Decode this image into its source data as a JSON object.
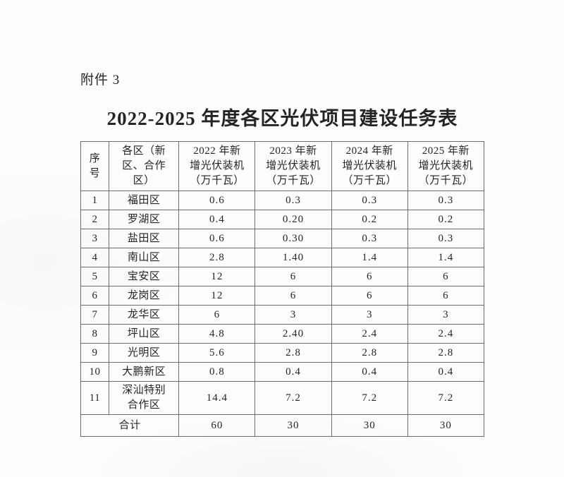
{
  "attachment_label": "附件 3",
  "title": "2022-2025 年度各区光伏项目建设任务表",
  "table": {
    "headers": [
      "序\n号",
      "各区（新\n区、合作\n区）",
      "2022 年新\n增光伏装机\n（万千瓦）",
      "2023 年新\n增光伏装机\n（万千瓦）",
      "2024 年新\n增光伏装机\n（万千瓦）",
      "2025 年新\n增光伏装机\n（万千瓦）"
    ],
    "rows": [
      [
        "1",
        "福田区",
        "0.6",
        "0.3",
        "0.3",
        "0.3"
      ],
      [
        "2",
        "罗湖区",
        "0.4",
        "0.20",
        "0.2",
        "0.2"
      ],
      [
        "3",
        "盐田区",
        "0.6",
        "0.30",
        "0.3",
        "0.3"
      ],
      [
        "4",
        "南山区",
        "2.8",
        "1.40",
        "1.4",
        "1.4"
      ],
      [
        "5",
        "宝安区",
        "12",
        "6",
        "6",
        "6"
      ],
      [
        "6",
        "龙岗区",
        "12",
        "6",
        "6",
        "6"
      ],
      [
        "7",
        "龙华区",
        "6",
        "3",
        "3",
        "3"
      ],
      [
        "8",
        "坪山区",
        "4.8",
        "2.40",
        "2.4",
        "2.4"
      ],
      [
        "9",
        "光明区",
        "5.6",
        "2.8",
        "2.8",
        "2.8"
      ],
      [
        "10",
        "大鹏新区",
        "0.8",
        "0.4",
        "0.4",
        "0.4"
      ],
      [
        "11",
        "深汕特别\n合作区",
        "14.4",
        "7.2",
        "7.2",
        "7.2"
      ]
    ],
    "total": [
      "合计",
      "60",
      "30",
      "30",
      "30"
    ]
  }
}
